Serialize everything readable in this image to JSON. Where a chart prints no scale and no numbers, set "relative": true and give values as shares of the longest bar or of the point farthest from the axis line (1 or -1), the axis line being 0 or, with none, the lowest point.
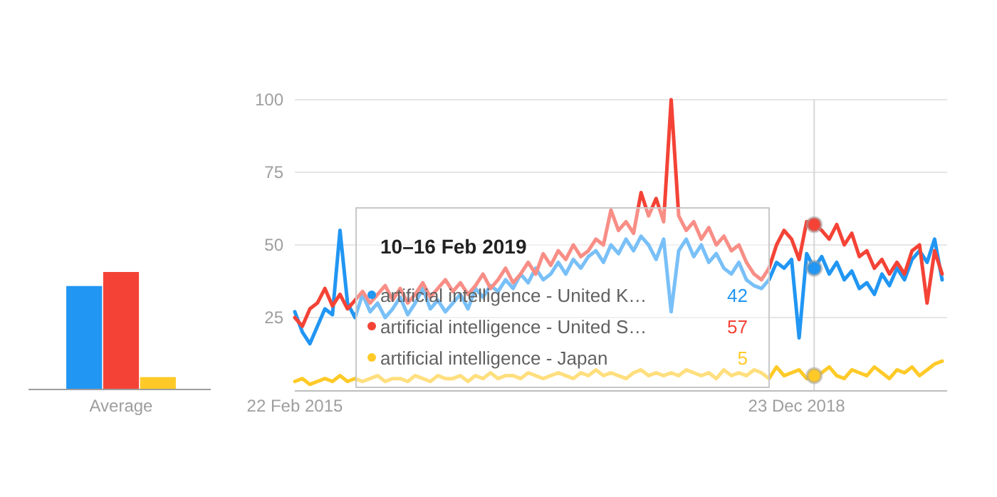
{
  "chart_data": [
    {
      "type": "bar",
      "relative": true,
      "categories": [
        "Average"
      ],
      "series": [
        {
          "color": "#2196f3",
          "values": [
            0.88
          ]
        },
        {
          "color": "#f44336",
          "values": [
            1
          ]
        },
        {
          "color": "#ffca28",
          "values": [
            0.1
          ]
        }
      ]
    },
    {
      "type": "line",
      "xlim": [
        "2015-02-22",
        "2020-02-16"
      ],
      "ylim": [
        0,
        100
      ],
      "yticks": [
        25,
        50,
        75,
        100
      ],
      "xticks": [
        {
          "value": "2015-02-22",
          "label": "22 Feb 2015"
        },
        {
          "value": "2018-12-23",
          "label": "23 Dec 2018"
        }
      ],
      "grid": "y",
      "legend": "left",
      "line_style": "solid",
      "x": [
        "2015-02-22",
        "2015-03-15",
        "2015-04-05",
        "2015-04-26",
        "2015-05-17",
        "2015-06-07",
        "2015-06-28",
        "2015-07-19",
        "2015-08-09",
        "2015-08-30",
        "2015-09-20",
        "2015-10-11",
        "2015-11-01",
        "2015-11-22",
        "2015-12-13",
        "2016-01-03",
        "2016-01-24",
        "2016-02-14",
        "2016-03-06",
        "2016-03-27",
        "2016-04-17",
        "2016-05-08",
        "2016-05-29",
        "2016-06-19",
        "2016-07-10",
        "2016-07-31",
        "2016-08-21",
        "2016-09-11",
        "2016-10-02",
        "2016-10-23",
        "2016-11-13",
        "2016-12-04",
        "2016-12-25",
        "2017-01-15",
        "2017-02-05",
        "2017-02-26",
        "2017-03-19",
        "2017-04-09",
        "2017-04-30",
        "2017-05-21",
        "2017-06-11",
        "2017-07-02",
        "2017-07-23",
        "2017-08-13",
        "2017-09-03",
        "2017-09-24",
        "2017-10-15",
        "2017-11-05",
        "2017-11-26",
        "2017-12-17",
        "2018-01-07",
        "2018-01-28",
        "2018-02-18",
        "2018-03-11",
        "2018-04-01",
        "2018-04-22",
        "2018-05-13",
        "2018-06-03",
        "2018-06-24",
        "2018-07-15",
        "2018-08-05",
        "2018-08-26",
        "2018-09-16",
        "2018-10-07",
        "2018-10-28",
        "2018-11-18",
        "2018-12-09",
        "2018-12-30",
        "2019-01-20",
        "2019-02-10",
        "2019-03-03",
        "2019-03-24",
        "2019-04-14",
        "2019-05-05",
        "2019-05-26",
        "2019-06-16",
        "2019-07-07",
        "2019-07-28",
        "2019-08-18",
        "2019-09-08",
        "2019-09-29",
        "2019-10-20",
        "2019-11-10",
        "2019-12-01",
        "2019-12-22",
        "2020-01-12",
        "2020-02-02"
      ],
      "series": [
        {
          "name": "artificial intelligence - United K…",
          "color": "#2196f3",
          "values": [
            27,
            20,
            16,
            22,
            28,
            26,
            55,
            30,
            25,
            33,
            27,
            30,
            25,
            28,
            32,
            26,
            30,
            35,
            28,
            31,
            27,
            30,
            33,
            28,
            35,
            32,
            36,
            34,
            38,
            35,
            40,
            37,
            42,
            38,
            40,
            44,
            40,
            45,
            42,
            46,
            48,
            44,
            50,
            47,
            52,
            48,
            53,
            50,
            45,
            52,
            27,
            48,
            52,
            46,
            50,
            44,
            47,
            42,
            40,
            44,
            38,
            36,
            35,
            38,
            44,
            42,
            45,
            18,
            47,
            42,
            46,
            40,
            44,
            38,
            41,
            35,
            37,
            33,
            40,
            36,
            42,
            38,
            45,
            48,
            44,
            52,
            38
          ]
        },
        {
          "name": "artificial intelligence - United S…",
          "color": "#f44336",
          "values": [
            25,
            22,
            28,
            30,
            35,
            29,
            33,
            28,
            31,
            34,
            30,
            33,
            36,
            31,
            35,
            30,
            33,
            37,
            32,
            35,
            38,
            34,
            37,
            33,
            36,
            40,
            35,
            38,
            42,
            37,
            40,
            44,
            40,
            47,
            43,
            48,
            45,
            50,
            46,
            48,
            52,
            50,
            62,
            55,
            58,
            54,
            68,
            60,
            66,
            58,
            100,
            60,
            55,
            58,
            52,
            56,
            50,
            53,
            48,
            50,
            44,
            40,
            38,
            42,
            50,
            55,
            52,
            45,
            58,
            57,
            55,
            52,
            57,
            50,
            54,
            46,
            48,
            42,
            45,
            40,
            44,
            40,
            48,
            50,
            30,
            48,
            40
          ]
        },
        {
          "name": "artificial intelligence - Japan",
          "color": "#ffca28",
          "values": [
            3,
            4,
            2,
            3,
            4,
            3,
            5,
            3,
            4,
            3,
            4,
            5,
            3,
            4,
            4,
            3,
            5,
            4,
            3,
            5,
            4,
            4,
            5,
            3,
            5,
            4,
            6,
            4,
            5,
            5,
            4,
            6,
            5,
            4,
            5,
            6,
            5,
            4,
            6,
            5,
            7,
            5,
            6,
            5,
            4,
            6,
            7,
            5,
            6,
            5,
            6,
            5,
            7,
            6,
            5,
            6,
            4,
            7,
            5,
            6,
            5,
            7,
            6,
            4,
            8,
            5,
            6,
            7,
            4,
            5,
            6,
            8,
            5,
            4,
            7,
            6,
            5,
            8,
            6,
            4,
            7,
            6,
            8,
            5,
            7,
            9,
            10
          ]
        }
      ],
      "ref_lines": [
        {
          "axis": "x",
          "value": "2019-02-10",
          "color": "#d6d6d6"
        }
      ],
      "annotations": [
        "10–16 Feb 2019",
        "42",
        "57",
        "5"
      ]
    }
  ]
}
